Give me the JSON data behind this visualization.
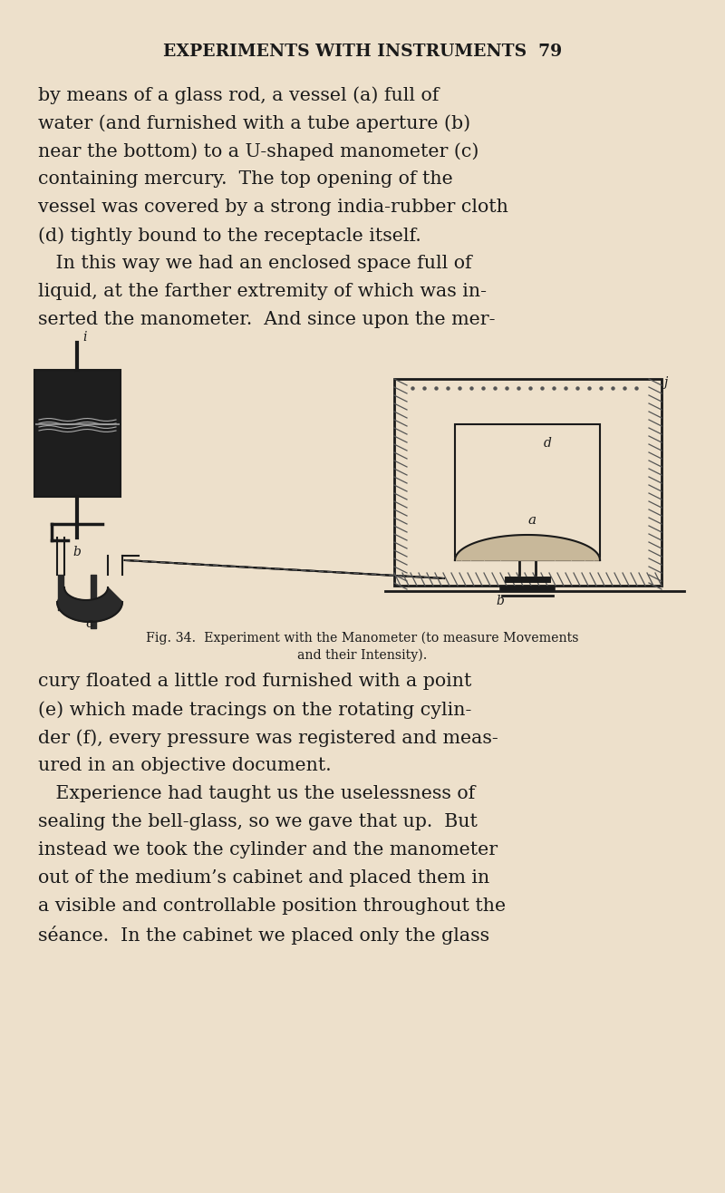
{
  "bg_color": "#ede0cb",
  "text_color": "#1a1a1a",
  "page_width": 8.0,
  "page_height": 13.16,
  "header": "EXPERIMENTS WITH INSTRUMENTS  79",
  "body_text": [
    "by means of a glass rod, a vessel (a) full of",
    "water (and furnished with a tube aperture (b)",
    "near the bottom) to a U-shaped manometer (c)",
    "containing mercury.  The top opening of the",
    "vessel was covered by a strong india-rubber cloth",
    "(d) tightly bound to the receptacle itself.",
    "   In this way we had an enclosed space full of",
    "liquid, at the farther extremity of which was in-",
    "serted the manometer.  And since upon the mer-"
  ],
  "body_text2": [
    "cury floated a little rod furnished with a point",
    "(e) which made tracings on the rotating cylin-",
    "der (f), every pressure was registered and meas-",
    "ured in an objective document.",
    "   Experience had taught us the uselessness of",
    "sealing the bell-glass, so we gave that up.  But",
    "instead we took the cylinder and the manometer",
    "out of the medium’s cabinet and placed them in",
    "a visible and controllable position throughout the",
    "séance.  In the cabinet we placed only the glass"
  ],
  "caption_line1": "Fig. 34.  Experiment with the Manometer (to measure Movements",
  "caption_line2": "and their Intensity).",
  "fig_bg": "#ede0cb"
}
